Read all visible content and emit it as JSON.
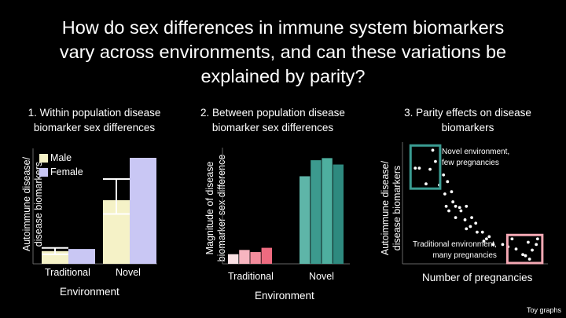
{
  "title_lines": [
    "How do sex differences in immune system biomarkers",
    "vary across environments, and can these variations be",
    "explained by parity?"
  ],
  "footnote": "Toy graphs",
  "colors": {
    "male": "#f5f2c7",
    "female": "#c9c7f4",
    "teal": "#4eaf9f",
    "teal_box": "#3a9c92",
    "pink_box": "#f4a8b4"
  },
  "chart_data": [
    {
      "type": "bar",
      "title_lines": [
        "1. Within population disease",
        "biomarker sex differences"
      ],
      "xlabel": "Environment",
      "ylabel_lines": [
        "Autoimmune disease/",
        "disease biomarkers"
      ],
      "categories": [
        "Traditional",
        "Novel"
      ],
      "legend_position": "top-left",
      "series": [
        {
          "name": "Male",
          "values": [
            0.12,
            0.6
          ],
          "color": "#f5f2c7"
        },
        {
          "name": "Female",
          "values": [
            0.14,
            1.0
          ],
          "color": "#c9c7f4"
        }
      ],
      "error_bars": {
        "series": "Male",
        "low": [
          0.09,
          0.47
        ],
        "high": [
          0.15,
          0.8
        ]
      },
      "ylim": [
        0,
        1.0
      ]
    },
    {
      "type": "bar",
      "title_lines": [
        "2. Between population disease",
        "biomarker sex differences"
      ],
      "xlabel": "Environment",
      "ylabel_lines": [
        "Magnitude of disease",
        "biomarker sex difference"
      ],
      "categories": [
        "Traditional",
        "Novel"
      ],
      "groups": [
        {
          "name": "Traditional",
          "values": [
            0.09,
            0.13,
            0.11,
            0.15
          ],
          "colors": [
            "#fbe1e4",
            "#f7b5c0",
            "#f38c9c",
            "#ee6b80"
          ]
        },
        {
          "name": "Novel",
          "values": [
            0.82,
            0.97,
            0.99,
            0.93
          ],
          "colors": [
            "#5eb5a8",
            "#3c9a8e",
            "#4eaf9f",
            "#2e8a7f"
          ]
        }
      ],
      "ylim": [
        0,
        1.0
      ]
    },
    {
      "type": "scatter",
      "title_lines": [
        "3. Parity effects on disease",
        "biomarkers"
      ],
      "xlabel": "Number of pregnancies",
      "ylabel_lines": [
        "Autoimmune disease/",
        "disease biomarkers"
      ],
      "annotations": [
        {
          "lines": [
            "Novel environment,",
            "few pregnancies"
          ]
        },
        {
          "lines": [
            "Traditional environment,",
            "many pregnancies"
          ]
        }
      ],
      "x": [
        0.06,
        0.09,
        0.19,
        0.21,
        0.17,
        0.27,
        0.24,
        0.14,
        0.3,
        0.33,
        0.28,
        0.34,
        0.36,
        0.29,
        0.39,
        0.31,
        0.44,
        0.4,
        0.36,
        0.48,
        0.43,
        0.51,
        0.47,
        0.44,
        0.56,
        0.52,
        0.61,
        0.59,
        0.57,
        0.64,
        0.71,
        0.75,
        0.81,
        0.86,
        0.78,
        0.9,
        0.93,
        0.97,
        0.88,
        0.96,
        0.91
      ],
      "y": [
        0.81,
        0.81,
        0.97,
        0.87,
        0.8,
        0.75,
        0.66,
        0.67,
        0.69,
        0.6,
        0.58,
        0.51,
        0.47,
        0.47,
        0.46,
        0.43,
        0.47,
        0.43,
        0.37,
        0.37,
        0.35,
        0.32,
        0.29,
        0.27,
        0.24,
        0.24,
        0.2,
        0.18,
        0.16,
        0.13,
        0.13,
        0.11,
        0.09,
        0.04,
        0.18,
        0.15,
        0.08,
        0.18,
        0.03,
        0.13,
        0.0
      ],
      "xlim": [
        0,
        1
      ],
      "ylim": [
        0,
        1
      ]
    }
  ]
}
